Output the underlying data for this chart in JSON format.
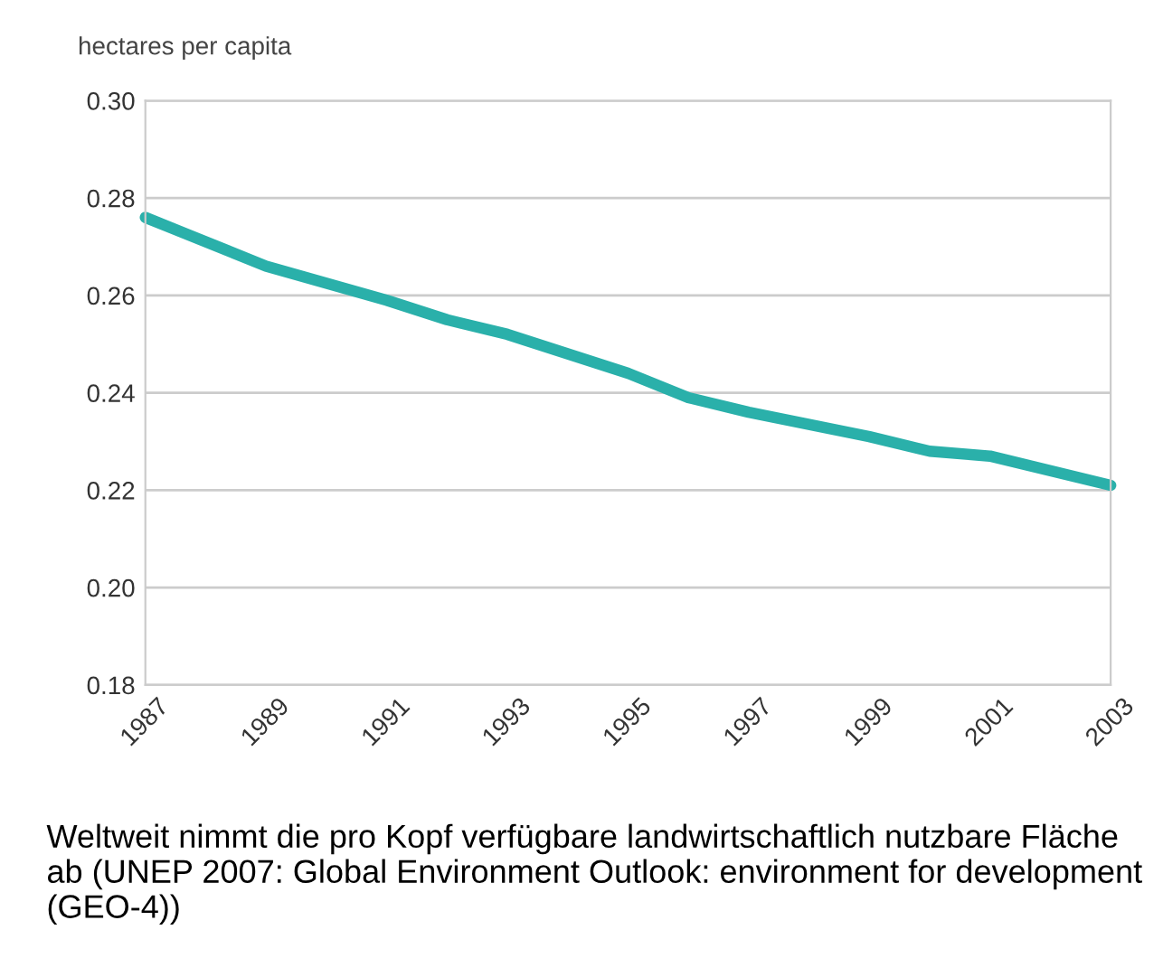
{
  "chart_data": {
    "type": "line",
    "ylabel": "hectares per capita",
    "x": [
      1987,
      1989,
      1991,
      1992,
      1993,
      1995,
      1996,
      1997,
      1999,
      2000,
      2001,
      2003
    ],
    "series": [
      {
        "color": "#2ab0aa",
        "values": [
          0.276,
          0.266,
          0.259,
          0.255,
          0.252,
          0.244,
          0.239,
          0.236,
          0.231,
          0.228,
          0.227,
          0.221
        ]
      }
    ],
    "xlim": [
      1987,
      2003
    ],
    "xticks": [
      1987,
      1989,
      1991,
      1993,
      1995,
      1997,
      1999,
      2001,
      2003
    ],
    "ylim": [
      0.18,
      0.3
    ],
    "yticks": [
      {
        "value": 0.18,
        "label": "0.18"
      },
      {
        "value": 0.2,
        "label": "0.20"
      },
      {
        "value": 0.22,
        "label": "0.22"
      },
      {
        "value": 0.24,
        "label": "0.24"
      },
      {
        "value": 0.26,
        "label": "0.26"
      },
      {
        "value": 0.28,
        "label": "0.28"
      },
      {
        "value": 0.3,
        "label": "0.30"
      }
    ],
    "grid": "y",
    "line_style": "solid",
    "marker": "none",
    "annotations": [
      "Weltweit nimmt die pro Kopf verfügbare landwirtschaftlich nutzbare Fläche ab (UNEP 2007: Global Environment Outlook: environment for development (GEO-4))"
    ]
  }
}
